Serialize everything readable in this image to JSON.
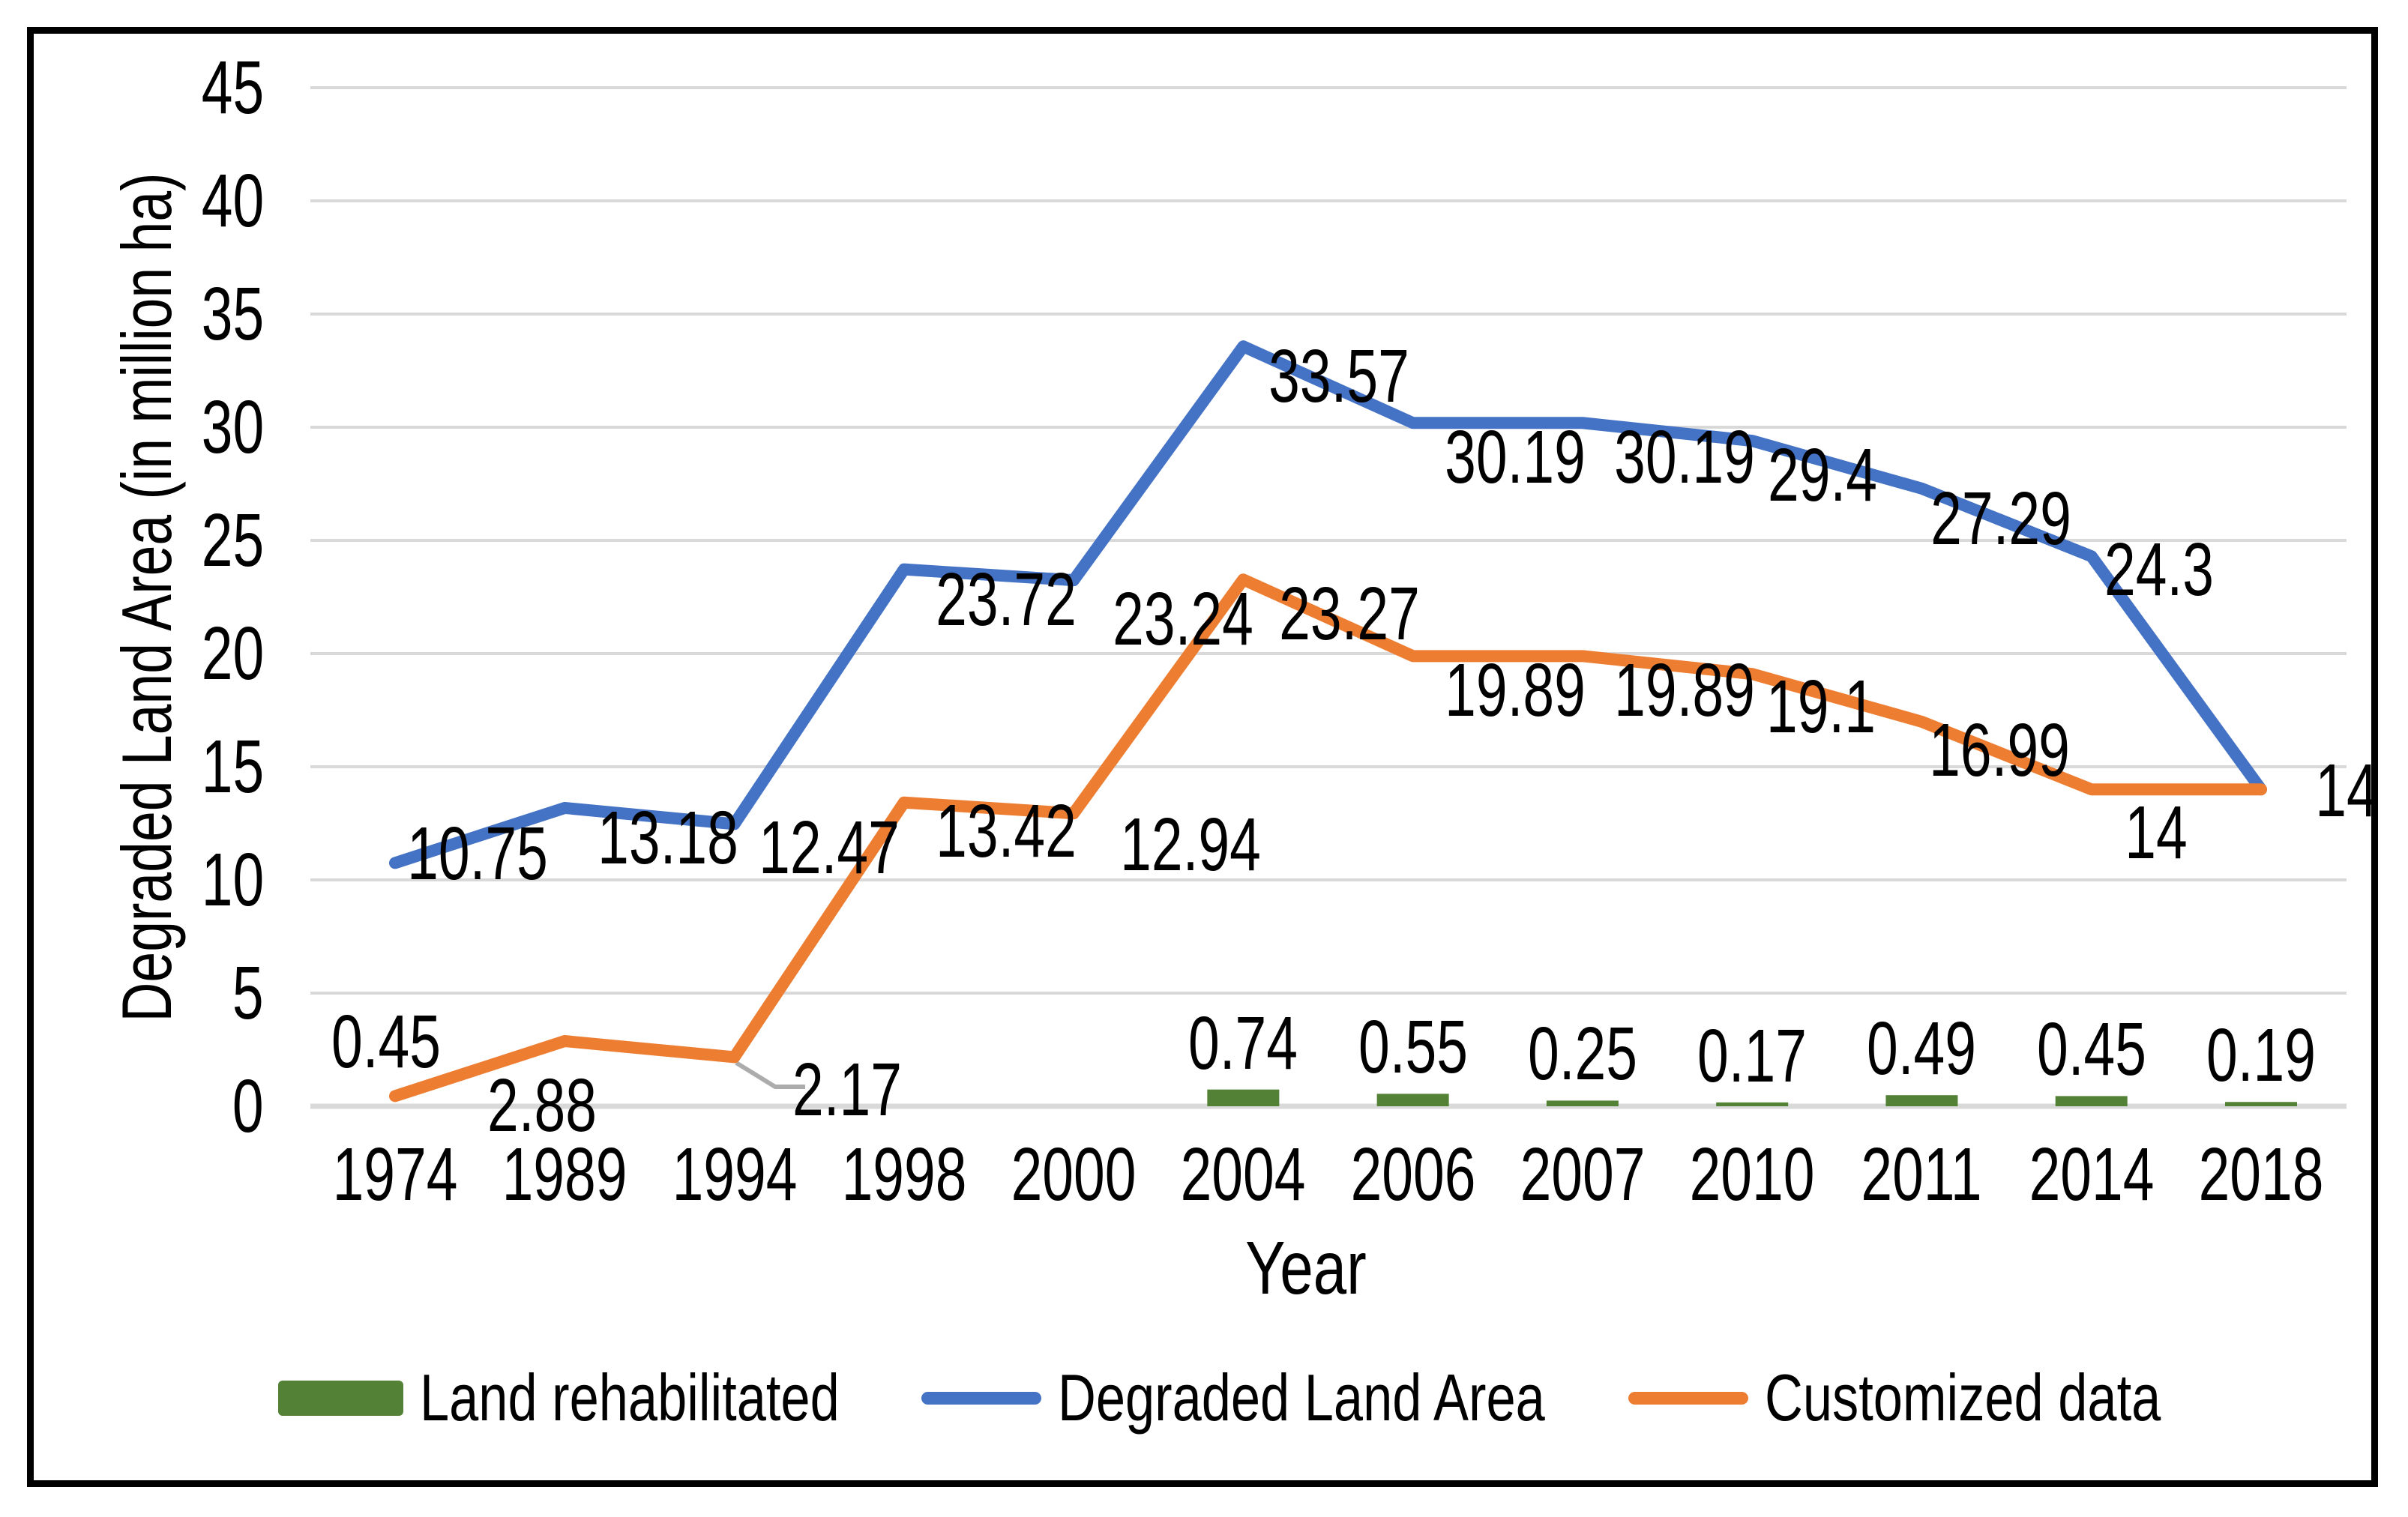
{
  "chart_data": {
    "type": "line",
    "title": "",
    "categories": [
      "1974",
      "1989",
      "1994",
      "1998",
      "2000",
      "2004",
      "2006",
      "2007",
      "2010",
      "2011",
      "2014",
      "2018"
    ],
    "series": [
      {
        "name": "Land rehabilitated",
        "type": "bar",
        "color": "#538135",
        "values": [
          null,
          null,
          null,
          null,
          null,
          0.74,
          0.55,
          0.25,
          0.17,
          0.49,
          0.45,
          0.19
        ],
        "label_texts": [
          "",
          "",
          "",
          "",
          "",
          "0.74",
          "0.55",
          "0.25",
          "0.17",
          "0.49",
          "0.45",
          "0.19"
        ]
      },
      {
        "name": "Degraded Land Area",
        "type": "line",
        "color": "#4472C4",
        "values": [
          10.75,
          13.18,
          12.47,
          23.72,
          23.24,
          33.57,
          30.19,
          30.19,
          29.4,
          27.29,
          24.3,
          14
        ],
        "label_texts": [
          "10.75",
          "13.18",
          "12.47",
          "23.72",
          "23.24",
          "33.57",
          "30.19",
          "30.19",
          "29.4",
          "27.29",
          "24.3",
          ""
        ]
      },
      {
        "name": "Customized data",
        "type": "line",
        "color": "#ED7D31",
        "values": [
          0.45,
          2.88,
          2.17,
          13.42,
          12.94,
          23.27,
          19.89,
          19.89,
          19.1,
          16.99,
          14,
          14
        ],
        "label_texts": [
          "0.45",
          "2.88",
          "2.17",
          "13.42",
          "12.94",
          "23.27",
          "19.89",
          "19.89",
          "19.1",
          "16.99",
          "14",
          "14"
        ]
      }
    ],
    "xlabel": "Year",
    "ylabel": "Degraded Land Area (in million ha)",
    "ylim": [
      0,
      45
    ],
    "y_ticks": [
      0,
      5,
      10,
      15,
      20,
      25,
      30,
      35,
      40,
      45
    ],
    "grid": true,
    "legend_position": "bottom",
    "annotation_leader": {
      "series": "Customized data",
      "category": "1994",
      "label": "2.17"
    },
    "grid_color": "#D9D9D9",
    "leader_color": "#ACACAC",
    "text_color": "#000000",
    "background": "#FFFFFF",
    "frame_color": "#000000"
  }
}
